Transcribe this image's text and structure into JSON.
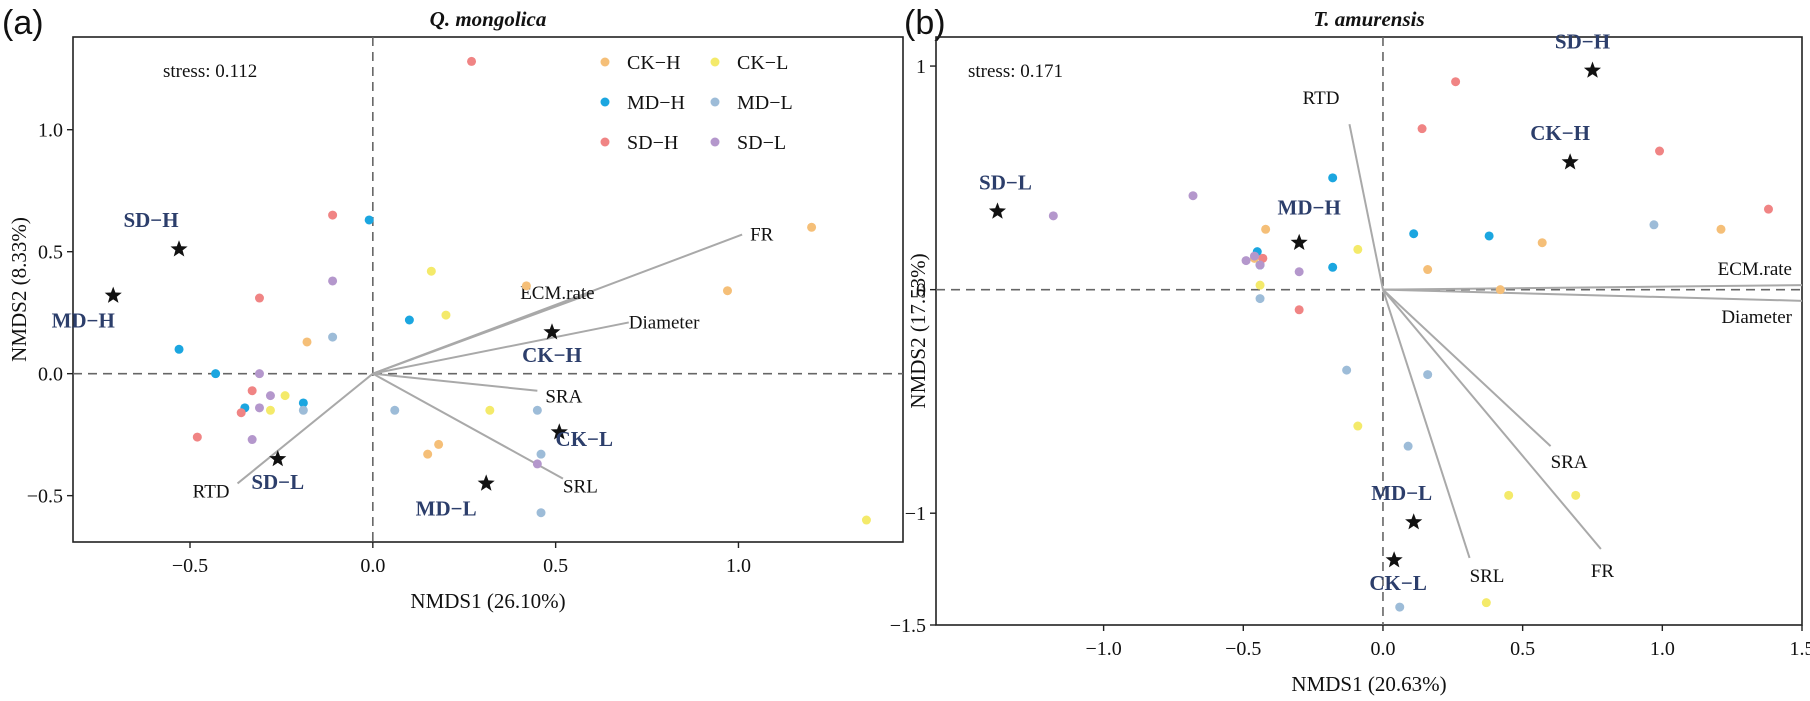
{
  "panels": [
    {
      "letter": "(a)",
      "stress": "stress: 0.112"
    },
    {
      "letter": "(b)",
      "stress": "stress: 0.171"
    }
  ],
  "chart_data": [
    {
      "type": "scatter",
      "title": "Q. mongolica",
      "xlabel": "NMDS1 (26.10%)",
      "ylabel": "NMDS2 (8.33%)",
      "xlim": [
        -0.82,
        1.45
      ],
      "ylim": [
        -0.69,
        1.38
      ],
      "xticks": [
        -0.5,
        0.0,
        0.5,
        1.0
      ],
      "xtick_labels": [
        "−0.5",
        "0.0",
        "0.5",
        "1.0"
      ],
      "yticks": [
        -0.5,
        0.0,
        0.5,
        1.0
      ],
      "ytick_labels": [
        "−0.5",
        "0.0",
        "0.5",
        "1.0"
      ],
      "grid": false,
      "legend_position": "top-right",
      "series": [
        {
          "name": "CK−H",
          "color": "#f5bf78",
          "points": [
            [
              0.15,
              -0.33
            ],
            [
              0.18,
              -0.29
            ],
            [
              0.42,
              0.36
            ],
            [
              0.97,
              0.34
            ],
            [
              1.2,
              0.6
            ],
            [
              -0.18,
              0.13
            ]
          ]
        },
        {
          "name": "CK−L",
          "color": "#f4ea6a",
          "points": [
            [
              0.16,
              0.42
            ],
            [
              0.2,
              0.24
            ],
            [
              0.32,
              -0.15
            ],
            [
              -0.28,
              -0.15
            ],
            [
              -0.24,
              -0.09
            ],
            [
              1.35,
              -0.6
            ]
          ]
        },
        {
          "name": "MD−H",
          "color": "#1ba6e0",
          "points": [
            [
              -0.53,
              0.1
            ],
            [
              -0.43,
              0.0
            ],
            [
              -0.01,
              0.63
            ],
            [
              0.1,
              0.22
            ],
            [
              -0.19,
              -0.12
            ],
            [
              -0.35,
              -0.14
            ]
          ]
        },
        {
          "name": "MD−L",
          "color": "#9dbcd8",
          "points": [
            [
              0.06,
              -0.15
            ],
            [
              0.45,
              -0.15
            ],
            [
              0.46,
              -0.57
            ],
            [
              0.46,
              -0.33
            ],
            [
              -0.19,
              -0.15
            ],
            [
              -0.11,
              0.15
            ]
          ]
        },
        {
          "name": "SD−H",
          "color": "#f08484",
          "points": [
            [
              0.27,
              1.28
            ],
            [
              -0.11,
              0.65
            ],
            [
              -0.31,
              0.31
            ],
            [
              -0.48,
              -0.26
            ],
            [
              -0.36,
              -0.16
            ],
            [
              -0.33,
              -0.07
            ]
          ]
        },
        {
          "name": "SD−L",
          "color": "#b497cc",
          "points": [
            [
              -0.11,
              0.38
            ],
            [
              -0.28,
              -0.09
            ],
            [
              -0.31,
              -0.14
            ],
            [
              -0.33,
              -0.27
            ],
            [
              0.45,
              -0.37
            ],
            [
              -0.31,
              0.0
            ]
          ]
        }
      ],
      "centroids": [
        {
          "label": "SD−H",
          "x": -0.53,
          "y": 0.51,
          "label_dx": -28,
          "label_dy": -22
        },
        {
          "label": "MD−H",
          "x": -0.71,
          "y": 0.32,
          "label_dx": -30,
          "label_dy": 32
        },
        {
          "label": "CK−H",
          "x": 0.49,
          "y": 0.17,
          "label_dx": 0,
          "label_dy": 30
        },
        {
          "label": "CK−L",
          "x": 0.51,
          "y": -0.24,
          "label_dx": 25,
          "label_dy": 14
        },
        {
          "label": "MD−L",
          "x": 0.31,
          "y": -0.45,
          "label_dx": -40,
          "label_dy": 32
        },
        {
          "label": "SD−L",
          "x": -0.26,
          "y": -0.35,
          "label_dx": 0,
          "label_dy": 30
        }
      ],
      "vectors": [
        {
          "label": "FR",
          "x": 1.01,
          "y": 0.57,
          "label_dx": 8,
          "label_dy": 6,
          "anchor": "start"
        },
        {
          "label": "ECM.rate",
          "x": 0.6,
          "y": 0.33,
          "label_dx": -72,
          "label_dy": 6,
          "anchor": "start"
        },
        {
          "label": "Diameter",
          "x": 0.7,
          "y": 0.21,
          "label_dx": 0,
          "label_dy": 6,
          "anchor": "start"
        },
        {
          "label": "SRA",
          "x": 0.45,
          "y": -0.07,
          "label_dx": 8,
          "label_dy": 12,
          "anchor": "start"
        },
        {
          "label": "SRL",
          "x": 0.52,
          "y": -0.43,
          "label_dx": 0,
          "label_dy": 14,
          "anchor": "start"
        },
        {
          "label": "RTD",
          "x": -0.37,
          "y": -0.45,
          "label_dx": -8,
          "label_dy": 14,
          "anchor": "end"
        }
      ]
    },
    {
      "type": "scatter",
      "title": "T. amurensis",
      "xlabel": "NMDS1 (20.63%)",
      "ylabel": "NMDS2 (17.53%)",
      "xlim": [
        -1.6,
        1.5
      ],
      "ylim": [
        -1.5,
        1.13
      ],
      "xticks": [
        -1.0,
        -0.5,
        0.0,
        0.5,
        1.0,
        1.5
      ],
      "xtick_labels": [
        "−1.0",
        "−0.5",
        "0.0",
        "0.5",
        "1.0",
        "1.5"
      ],
      "yticks": [
        -1.5,
        -1,
        0,
        1
      ],
      "ytick_labels": [
        "−1.5",
        "−1",
        "0",
        "1"
      ],
      "grid": false,
      "legend_position": "none",
      "series": [
        {
          "name": "CK−H",
          "color": "#f5bf78",
          "points": [
            [
              0.57,
              0.21
            ],
            [
              1.21,
              0.27
            ],
            [
              0.16,
              0.09
            ],
            [
              -0.42,
              0.27
            ],
            [
              0.42,
              0.0
            ],
            [
              -0.46,
              0.14
            ]
          ]
        },
        {
          "name": "CK−L",
          "color": "#f4ea6a",
          "points": [
            [
              -0.09,
              0.18
            ],
            [
              -0.09,
              -0.61
            ],
            [
              0.45,
              -0.92
            ],
            [
              0.69,
              -0.92
            ],
            [
              0.37,
              -1.4
            ],
            [
              -0.44,
              0.02
            ]
          ]
        },
        {
          "name": "MD−H",
          "color": "#1ba6e0",
          "points": [
            [
              -0.18,
              0.5
            ],
            [
              -0.18,
              0.1
            ],
            [
              0.11,
              0.25
            ],
            [
              0.38,
              0.24
            ],
            [
              -0.44,
              0.11
            ],
            [
              -0.45,
              0.17
            ]
          ]
        },
        {
          "name": "MD−L",
          "color": "#9dbcd8",
          "points": [
            [
              0.09,
              -0.7
            ],
            [
              -0.13,
              -0.36
            ],
            [
              0.16,
              -0.38
            ],
            [
              0.97,
              0.29
            ],
            [
              0.06,
              -1.42
            ],
            [
              -0.44,
              -0.04
            ]
          ]
        },
        {
          "name": "SD−H",
          "color": "#f08484",
          "points": [
            [
              0.26,
              0.93
            ],
            [
              0.14,
              0.72
            ],
            [
              0.99,
              0.62
            ],
            [
              1.38,
              0.36
            ],
            [
              -0.3,
              -0.09
            ],
            [
              -0.43,
              0.14
            ]
          ]
        },
        {
          "name": "SD−L",
          "color": "#b497cc",
          "points": [
            [
              -1.18,
              0.33
            ],
            [
              -0.68,
              0.42
            ],
            [
              -0.49,
              0.13
            ],
            [
              -0.46,
              0.15
            ],
            [
              -0.3,
              0.08
            ],
            [
              -0.44,
              0.11
            ]
          ]
        }
      ],
      "centroids": [
        {
          "label": "SD−H",
          "x": 0.75,
          "y": 0.98,
          "label_dx": -10,
          "label_dy": -22
        },
        {
          "label": "CK−H",
          "x": 0.67,
          "y": 0.57,
          "label_dx": -10,
          "label_dy": -22
        },
        {
          "label": "SD−L",
          "x": -1.38,
          "y": 0.35,
          "label_dx": 8,
          "label_dy": -22
        },
        {
          "label": "MD−H",
          "x": -0.3,
          "y": 0.21,
          "label_dx": 10,
          "label_dy": -28
        },
        {
          "label": "MD−L",
          "x": 0.11,
          "y": -1.04,
          "label_dx": -12,
          "label_dy": -22
        },
        {
          "label": "CK−L",
          "x": 0.04,
          "y": -1.21,
          "label_dx": 4,
          "label_dy": 30
        }
      ],
      "vectors": [
        {
          "label": "RTD",
          "x": -0.12,
          "y": 0.74,
          "label_dx": -10,
          "label_dy": -20,
          "anchor": "end"
        },
        {
          "label": "ECM.rate",
          "x": 1.5,
          "y": 0.02,
          "label_dx": -10,
          "label_dy": -10,
          "anchor": "end"
        },
        {
          "label": "Diameter",
          "x": 1.5,
          "y": -0.05,
          "label_dx": -10,
          "label_dy": 22,
          "anchor": "end"
        },
        {
          "label": "SRA",
          "x": 0.6,
          "y": -0.7,
          "label_dx": 0,
          "label_dy": 22,
          "anchor": "start"
        },
        {
          "label": "SRL",
          "x": 0.31,
          "y": -1.2,
          "label_dx": 0,
          "label_dy": 24,
          "anchor": "start"
        },
        {
          "label": "FR",
          "x": 0.78,
          "y": -1.16,
          "label_dx": -10,
          "label_dy": 28,
          "anchor": "start"
        }
      ]
    }
  ]
}
